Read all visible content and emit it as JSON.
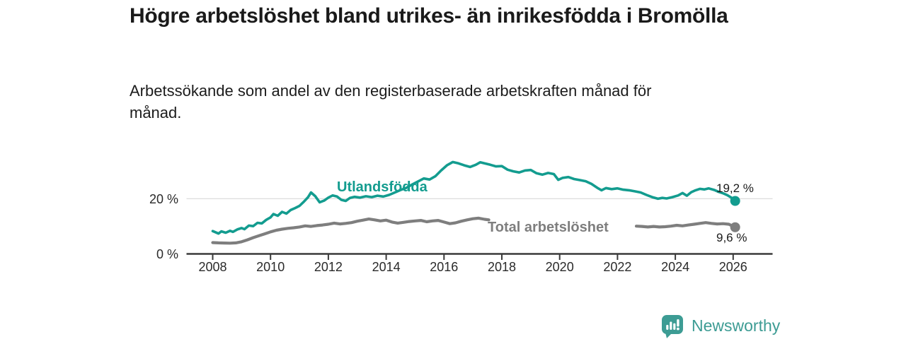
{
  "chart_data": {
    "type": "line",
    "title": "Högre arbetslöshet bland utrikes- än inrikesfödda i Bromölla",
    "subtitle": "Arbetssökande som andel av den registerbaserade arbetskraften månad för månad.",
    "unit": "%",
    "xlim": [
      2007.1,
      2027.3
    ],
    "ylim": [
      0,
      37
    ],
    "grid": "single horizontal gridline at 20%",
    "legend_position": "inline-labels-on-lines",
    "yticks": [
      {
        "value": 0,
        "label": "0 %"
      },
      {
        "value": 20,
        "label": "20 %"
      }
    ],
    "xticks": [
      2008,
      2010,
      2012,
      2014,
      2016,
      2018,
      2020,
      2022,
      2024,
      2026
    ],
    "series": [
      {
        "name": "Utlandsfödda",
        "color": "#139c8f",
        "end_value": 19.2,
        "end_value_label": "19,2 %",
        "end_point": [
          2026.07,
          19.2
        ],
        "segments": [
          [
            [
              2008.0,
              8.2
            ],
            [
              2008.2,
              7.3
            ],
            [
              2008.3,
              8.1
            ],
            [
              2008.45,
              7.6
            ],
            [
              2008.6,
              8.3
            ],
            [
              2008.7,
              7.9
            ],
            [
              2008.85,
              8.8
            ],
            [
              2009.0,
              9.3
            ],
            [
              2009.1,
              8.9
            ],
            [
              2009.25,
              10.2
            ],
            [
              2009.4,
              10.0
            ],
            [
              2009.55,
              11.2
            ],
            [
              2009.7,
              11.0
            ],
            [
              2009.85,
              12.3
            ],
            [
              2010.0,
              13.2
            ],
            [
              2010.1,
              14.4
            ],
            [
              2010.25,
              13.8
            ],
            [
              2010.4,
              15.2
            ],
            [
              2010.55,
              14.6
            ],
            [
              2010.7,
              15.9
            ],
            [
              2010.85,
              16.6
            ],
            [
              2011.0,
              17.4
            ],
            [
              2011.15,
              18.9
            ],
            [
              2011.3,
              20.6
            ],
            [
              2011.4,
              22.3
            ],
            [
              2011.55,
              20.9
            ],
            [
              2011.7,
              18.7
            ],
            [
              2011.85,
              19.3
            ],
            [
              2012.0,
              20.4
            ],
            [
              2012.15,
              21.2
            ],
            [
              2012.3,
              20.8
            ],
            [
              2012.45,
              19.6
            ],
            [
              2012.6,
              19.2
            ],
            [
              2012.75,
              20.3
            ],
            [
              2012.9,
              20.7
            ],
            [
              2013.1,
              20.4
            ],
            [
              2013.3,
              20.9
            ],
            [
              2013.5,
              20.6
            ],
            [
              2013.7,
              21.1
            ],
            [
              2013.9,
              20.8
            ],
            [
              2014.1,
              21.4
            ],
            [
              2014.3,
              22.3
            ],
            [
              2014.5,
              23.2
            ],
            [
              2014.7,
              24.0
            ],
            [
              2014.9,
              25.2
            ],
            [
              2015.1,
              26.3
            ],
            [
              2015.3,
              27.4
            ],
            [
              2015.5,
              27.0
            ],
            [
              2015.7,
              28.2
            ],
            [
              2015.9,
              30.3
            ],
            [
              2016.1,
              32.2
            ],
            [
              2016.3,
              33.4
            ],
            [
              2016.5,
              32.9
            ],
            [
              2016.7,
              32.2
            ],
            [
              2016.9,
              31.6
            ],
            [
              2017.1,
              32.4
            ],
            [
              2017.25,
              33.3
            ],
            [
              2017.4,
              32.9
            ],
            [
              2017.6,
              32.4
            ],
            [
              2017.8,
              31.8
            ],
            [
              2018.0,
              31.9
            ],
            [
              2018.2,
              30.6
            ],
            [
              2018.4,
              30.0
            ],
            [
              2018.6,
              29.6
            ],
            [
              2018.8,
              30.3
            ],
            [
              2019.0,
              30.5
            ],
            [
              2019.2,
              29.3
            ],
            [
              2019.4,
              28.8
            ],
            [
              2019.6,
              29.4
            ],
            [
              2019.8,
              29.0
            ],
            [
              2019.95,
              26.9
            ],
            [
              2020.1,
              27.6
            ],
            [
              2020.3,
              27.9
            ],
            [
              2020.5,
              27.2
            ],
            [
              2020.7,
              26.8
            ],
            [
              2020.9,
              26.4
            ],
            [
              2021.1,
              25.4
            ],
            [
              2021.3,
              24.0
            ],
            [
              2021.45,
              23.1
            ],
            [
              2021.6,
              23.9
            ],
            [
              2021.8,
              23.5
            ],
            [
              2022.0,
              23.8
            ],
            [
              2022.2,
              23.3
            ],
            [
              2022.4,
              23.1
            ],
            [
              2022.6,
              22.7
            ],
            [
              2022.8,
              22.3
            ],
            [
              2023.0,
              21.4
            ],
            [
              2023.2,
              20.6
            ],
            [
              2023.4,
              20.0
            ],
            [
              2023.55,
              20.3
            ],
            [
              2023.7,
              20.1
            ],
            [
              2023.9,
              20.6
            ],
            [
              2024.1,
              21.2
            ],
            [
              2024.25,
              22.1
            ],
            [
              2024.4,
              21.1
            ],
            [
              2024.55,
              22.4
            ],
            [
              2024.7,
              23.1
            ],
            [
              2024.85,
              23.6
            ],
            [
              2025.0,
              23.4
            ],
            [
              2025.15,
              23.8
            ],
            [
              2025.35,
              23.2
            ],
            [
              2025.5,
              22.5
            ],
            [
              2025.65,
              22.0
            ],
            [
              2025.8,
              21.3
            ],
            [
              2025.95,
              20.3
            ],
            [
              2026.07,
              19.2
            ]
          ]
        ]
      },
      {
        "name": "Total arbetslöshet",
        "color": "#7e7e7e",
        "end_value": 9.6,
        "end_value_label": "9,6 %",
        "end_point": [
          2026.07,
          9.6
        ],
        "segments": [
          [
            [
              2008.0,
              4.0
            ],
            [
              2008.2,
              3.9
            ],
            [
              2008.4,
              3.85
            ],
            [
              2008.6,
              3.8
            ],
            [
              2008.8,
              3.9
            ],
            [
              2009.0,
              4.3
            ],
            [
              2009.2,
              5.0
            ],
            [
              2009.4,
              5.8
            ],
            [
              2009.6,
              6.5
            ],
            [
              2009.8,
              7.2
            ],
            [
              2010.0,
              7.9
            ],
            [
              2010.2,
              8.5
            ],
            [
              2010.4,
              8.9
            ],
            [
              2010.6,
              9.2
            ],
            [
              2010.8,
              9.4
            ],
            [
              2011.0,
              9.7
            ],
            [
              2011.2,
              10.1
            ],
            [
              2011.4,
              9.9
            ],
            [
              2011.6,
              10.2
            ],
            [
              2011.8,
              10.4
            ],
            [
              2012.0,
              10.7
            ],
            [
              2012.2,
              11.1
            ],
            [
              2012.4,
              10.8
            ],
            [
              2012.6,
              11.0
            ],
            [
              2012.8,
              11.3
            ],
            [
              2013.0,
              11.8
            ],
            [
              2013.2,
              12.2
            ],
            [
              2013.4,
              12.6
            ],
            [
              2013.6,
              12.3
            ],
            [
              2013.8,
              11.9
            ],
            [
              2014.0,
              12.2
            ],
            [
              2014.2,
              11.5
            ],
            [
              2014.4,
              11.1
            ],
            [
              2014.6,
              11.4
            ],
            [
              2014.8,
              11.7
            ],
            [
              2015.0,
              11.9
            ],
            [
              2015.2,
              12.1
            ],
            [
              2015.4,
              11.6
            ],
            [
              2015.6,
              11.9
            ],
            [
              2015.8,
              12.1
            ],
            [
              2016.0,
              11.5
            ],
            [
              2016.2,
              10.9
            ],
            [
              2016.4,
              11.2
            ],
            [
              2016.6,
              11.8
            ],
            [
              2016.8,
              12.3
            ],
            [
              2017.0,
              12.7
            ],
            [
              2017.2,
              12.9
            ],
            [
              2017.4,
              12.5
            ],
            [
              2017.55,
              12.3
            ]
          ],
          [
            [
              2022.65,
              10.0
            ],
            [
              2022.85,
              9.9
            ],
            [
              2023.05,
              9.7
            ],
            [
              2023.25,
              9.9
            ],
            [
              2023.45,
              9.7
            ],
            [
              2023.65,
              9.8
            ],
            [
              2023.85,
              10.0
            ],
            [
              2024.05,
              10.3
            ],
            [
              2024.25,
              10.1
            ],
            [
              2024.45,
              10.4
            ],
            [
              2024.65,
              10.7
            ],
            [
              2024.85,
              11.0
            ],
            [
              2025.05,
              11.3
            ],
            [
              2025.25,
              11.0
            ],
            [
              2025.45,
              10.8
            ],
            [
              2025.65,
              10.9
            ],
            [
              2025.85,
              10.7
            ],
            [
              2026.07,
              9.6
            ]
          ]
        ]
      }
    ]
  },
  "branding": {
    "name": "Newsworthy",
    "icon": "newsworthy-bar-chart-bubble-icon",
    "color": "#3d9c94"
  },
  "style_colors": {
    "axis": "#3a3a3a",
    "gridline": "#dcdcdc",
    "text": "#1a1a1a"
  }
}
